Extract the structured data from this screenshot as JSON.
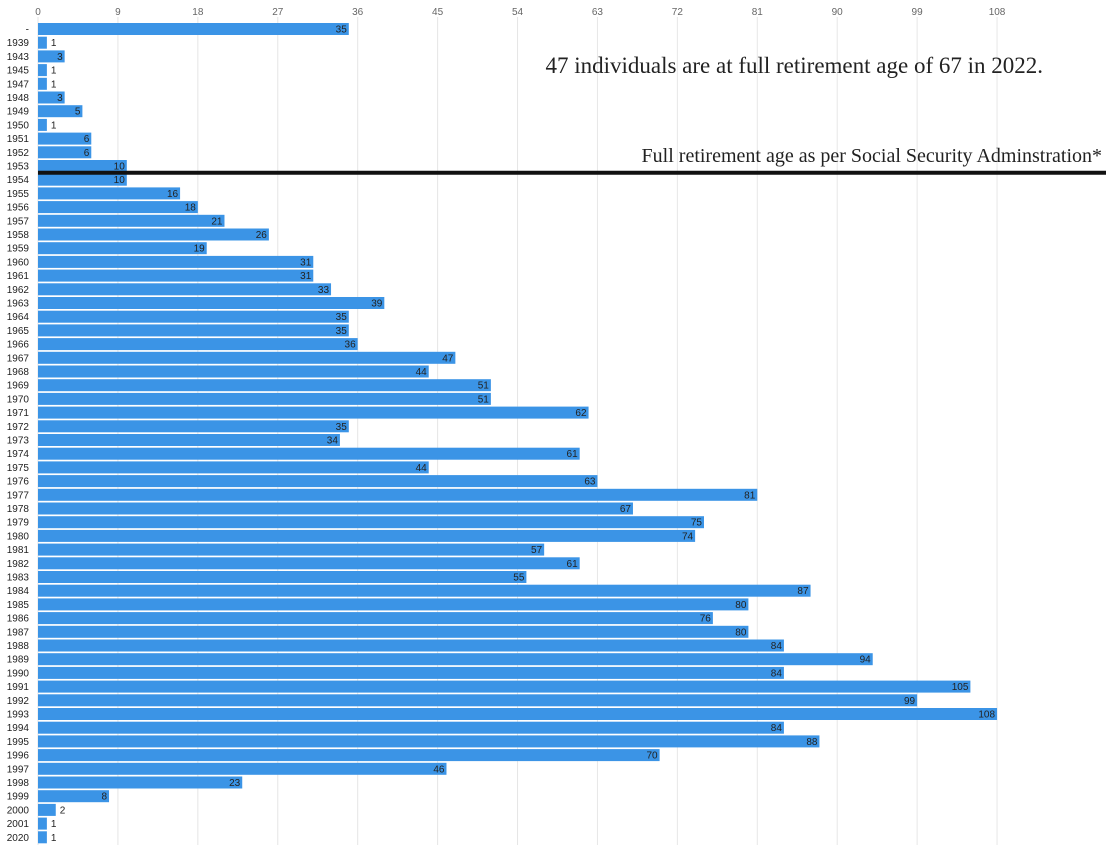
{
  "chart_data": {
    "type": "bar",
    "orientation": "horizontal",
    "title": "",
    "xlabel": "",
    "ylabel": "",
    "xlim": [
      0,
      117
    ],
    "x_ticks": [
      0,
      9,
      18,
      27,
      36,
      45,
      54,
      63,
      72,
      81,
      90,
      99,
      108
    ],
    "grid": true,
    "color": "#3b94e6",
    "categories": [
      "-",
      "1939",
      "1943",
      "1945",
      "1947",
      "1948",
      "1949",
      "1950",
      "1951",
      "1952",
      "1953",
      "1954",
      "1955",
      "1956",
      "1957",
      "1958",
      "1959",
      "1960",
      "1961",
      "1962",
      "1963",
      "1964",
      "1965",
      "1966",
      "1967",
      "1968",
      "1969",
      "1970",
      "1971",
      "1972",
      "1973",
      "1974",
      "1975",
      "1976",
      "1977",
      "1978",
      "1979",
      "1980",
      "1981",
      "1982",
      "1983",
      "1984",
      "1985",
      "1986",
      "1987",
      "1988",
      "1989",
      "1990",
      "1991",
      "1992",
      "1993",
      "1994",
      "1995",
      "1996",
      "1997",
      "1998",
      "1999",
      "2000",
      "2001",
      "2020"
    ],
    "values": [
      35,
      1,
      3,
      1,
      1,
      3,
      5,
      1,
      6,
      6,
      10,
      10,
      16,
      18,
      21,
      26,
      19,
      31,
      31,
      33,
      39,
      35,
      35,
      36,
      47,
      44,
      51,
      51,
      62,
      35,
      34,
      61,
      44,
      63,
      81,
      67,
      75,
      74,
      57,
      61,
      55,
      87,
      80,
      76,
      80,
      84,
      94,
      84,
      105,
      99,
      108,
      84,
      88,
      70,
      46,
      23,
      8,
      2,
      1,
      1
    ],
    "annotations": {
      "headline": "47 individuals are at full retirement age of 67 in 2022.",
      "line_label": "Full retirement age as per Social Security Adminstration*",
      "line_after_category": "1953"
    }
  }
}
